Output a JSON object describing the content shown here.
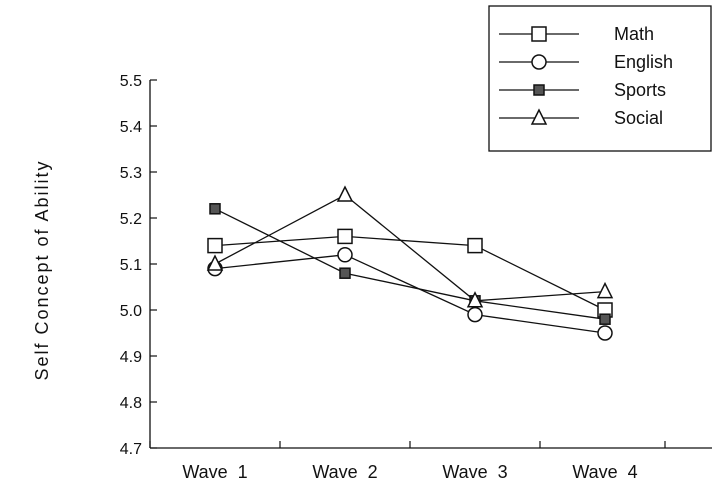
{
  "chart_data": {
    "type": "line",
    "title": "",
    "xlabel": "",
    "ylabel": "Self  Concept  of  Ability",
    "categories": [
      "Wave  1",
      "Wave  2",
      "Wave  3",
      "Wave  4"
    ],
    "ylim": [
      4.7,
      5.5
    ],
    "yticks": [
      "4.7",
      "4.8",
      "4.9",
      "5.0",
      "5.1",
      "5.2",
      "5.3",
      "5.4",
      "5.5"
    ],
    "grid": false,
    "legend_position": "top-right",
    "series": [
      {
        "name": "Math",
        "marker": "square",
        "values": [
          5.14,
          5.16,
          5.14,
          5.0
        ]
      },
      {
        "name": "English",
        "marker": "circle",
        "values": [
          5.09,
          5.12,
          4.99,
          4.95
        ]
      },
      {
        "name": "Sports",
        "marker": "filled-square",
        "values": [
          5.22,
          5.08,
          5.02,
          4.98
        ]
      },
      {
        "name": "Social",
        "marker": "triangle",
        "values": [
          5.1,
          5.25,
          5.02,
          5.04
        ]
      }
    ]
  }
}
